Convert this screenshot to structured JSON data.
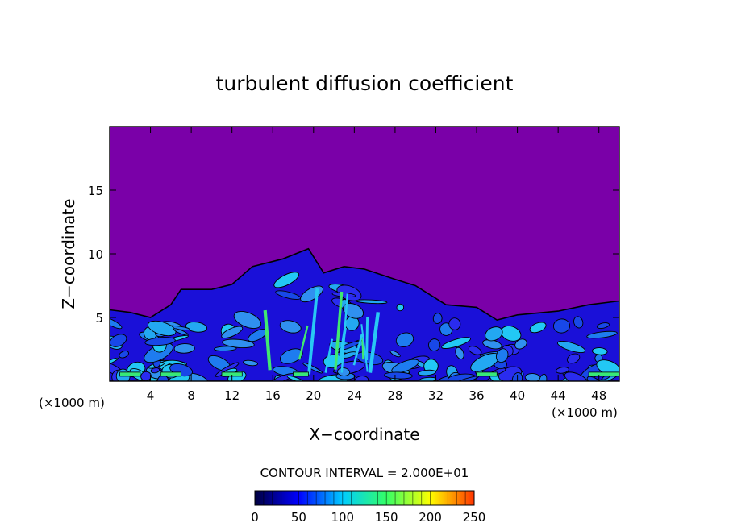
{
  "chart_data": {
    "type": "heatmap",
    "title": "turbulent diffusion coefficient",
    "xlabel": "X−coordinate",
    "ylabel": "Z−coordinate",
    "x_unit_left": "(×1000 m)",
    "x_unit_right": "(×1000 m)",
    "xlim": [
      0,
      50
    ],
    "ylim": [
      0,
      20
    ],
    "x_ticks": [
      4,
      8,
      12,
      16,
      20,
      24,
      28,
      32,
      36,
      40,
      44,
      48
    ],
    "y_ticks": [
      5,
      10,
      15
    ],
    "contour_interval_label": "CONTOUR INTERVAL = 2.000E+01",
    "colorbar": {
      "min": 0,
      "max": 250,
      "ticks": [
        0,
        50,
        100,
        150,
        200,
        250
      ],
      "colors": [
        "#000040",
        "#0000ff",
        "#00ccff",
        "#33ff66",
        "#ffff00",
        "#ff3300"
      ]
    },
    "background_color": "#7a00a8",
    "turbulent_layer_top_km": [
      [
        0,
        5.6
      ],
      [
        2,
        5.4
      ],
      [
        4,
        5.0
      ],
      [
        6,
        6.0
      ],
      [
        7,
        7.2
      ],
      [
        10,
        7.2
      ],
      [
        12,
        7.6
      ],
      [
        14,
        9.0
      ],
      [
        17,
        9.6
      ],
      [
        19.5,
        10.4
      ],
      [
        21,
        8.5
      ],
      [
        23,
        9.0
      ],
      [
        25,
        8.8
      ],
      [
        28,
        8.0
      ],
      [
        30,
        7.5
      ],
      [
        33,
        6.0
      ],
      [
        36,
        5.8
      ],
      [
        38,
        4.8
      ],
      [
        40,
        5.2
      ],
      [
        44,
        5.5
      ],
      [
        47,
        6.0
      ],
      [
        50,
        6.3
      ]
    ]
  }
}
